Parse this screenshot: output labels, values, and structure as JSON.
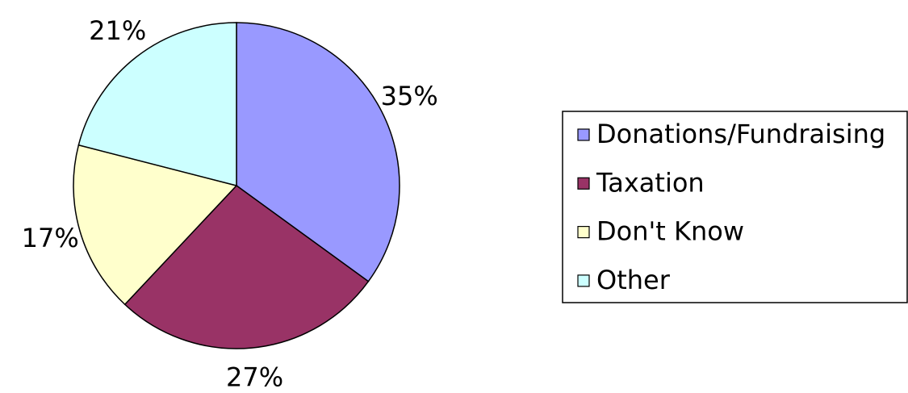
{
  "chart_data": {
    "type": "pie",
    "categories": [
      "Donations/Fundraising",
      "Taxation",
      "Don't Know",
      "Other"
    ],
    "values": [
      35,
      27,
      17,
      21
    ],
    "value_labels": [
      "35%",
      "27%",
      "17%",
      "21%"
    ],
    "colors": [
      "#9999ff",
      "#993366",
      "#ffffcc",
      "#ccffff"
    ],
    "legend": "right"
  }
}
